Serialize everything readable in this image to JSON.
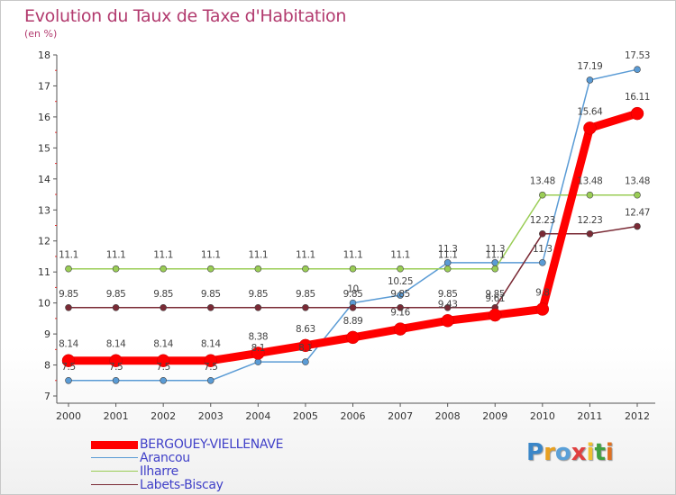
{
  "chart_data": {
    "type": "line",
    "title": "Evolution du Taux de Taxe d'Habitation",
    "ylabel": "(en %)",
    "xlabel": "",
    "x": [
      "2000",
      "2001",
      "2002",
      "2003",
      "2004",
      "2005",
      "2006",
      "2007",
      "2008",
      "2009",
      "2010",
      "2011",
      "2012"
    ],
    "ylim": [
      7,
      18
    ],
    "yticks": [
      "7",
      "8",
      "9",
      "10",
      "11",
      "12",
      "13",
      "14",
      "15",
      "16",
      "17",
      "18"
    ],
    "series": [
      {
        "name": "BERGOUEY-VIELLENAVE",
        "color": "#ff0000",
        "values": [
          8.14,
          8.14,
          8.14,
          8.14,
          8.38,
          8.63,
          8.89,
          9.16,
          9.43,
          9.61,
          9.8,
          15.64,
          16.11
        ],
        "labels": [
          "8.14",
          "8.14",
          "8.14",
          "8.14",
          "8.38",
          "8.63",
          "8.89",
          "9.16",
          "9.43",
          "9.61",
          "9.8",
          "15.64",
          "16.11"
        ]
      },
      {
        "name": "Arancou",
        "color": "#5a9bd5",
        "values": [
          7.5,
          7.5,
          7.5,
          7.5,
          8.1,
          8.1,
          10,
          10.25,
          11.3,
          11.3,
          11.3,
          17.19,
          17.53
        ],
        "labels": [
          "7.5",
          "7.5",
          "7.5",
          "7.5",
          "8.1",
          "8.1",
          "10",
          "10.25",
          "11.3",
          "11.3",
          "11.3",
          "17.19",
          "17.53"
        ]
      },
      {
        "name": "Ilharre",
        "color": "#9acd55",
        "values": [
          11.1,
          11.1,
          11.1,
          11.1,
          11.1,
          11.1,
          11.1,
          11.1,
          11.1,
          11.1,
          13.48,
          13.48,
          13.48
        ],
        "labels": [
          "11.1",
          "11.1",
          "11.1",
          "11.1",
          "11.1",
          "11.1",
          "11.1",
          "11.1",
          "11.1",
          "11.1",
          "13.48",
          "13.48",
          "13.48"
        ]
      },
      {
        "name": "Labets-Biscay",
        "color": "#7a2a35",
        "values": [
          9.85,
          9.85,
          9.85,
          9.85,
          9.85,
          9.85,
          9.85,
          9.85,
          9.85,
          9.85,
          12.23,
          12.23,
          12.47
        ],
        "labels": [
          "9.85",
          "9.85",
          "9.85",
          "9.85",
          "9.85",
          "9.85",
          "9.85",
          "9.85",
          "9.85",
          "9.85",
          "12.23",
          "12.23",
          "12.47"
        ]
      }
    ],
    "grid": false,
    "legend": "bottom-left"
  },
  "logo": {
    "letters": [
      "P",
      "r",
      "o",
      "x",
      "i",
      "t",
      "i"
    ],
    "colors": [
      "#3a86c8",
      "#e8a020",
      "#5aa0d8",
      "#e04040",
      "#f0c030",
      "#40a040",
      "#e07020"
    ]
  }
}
